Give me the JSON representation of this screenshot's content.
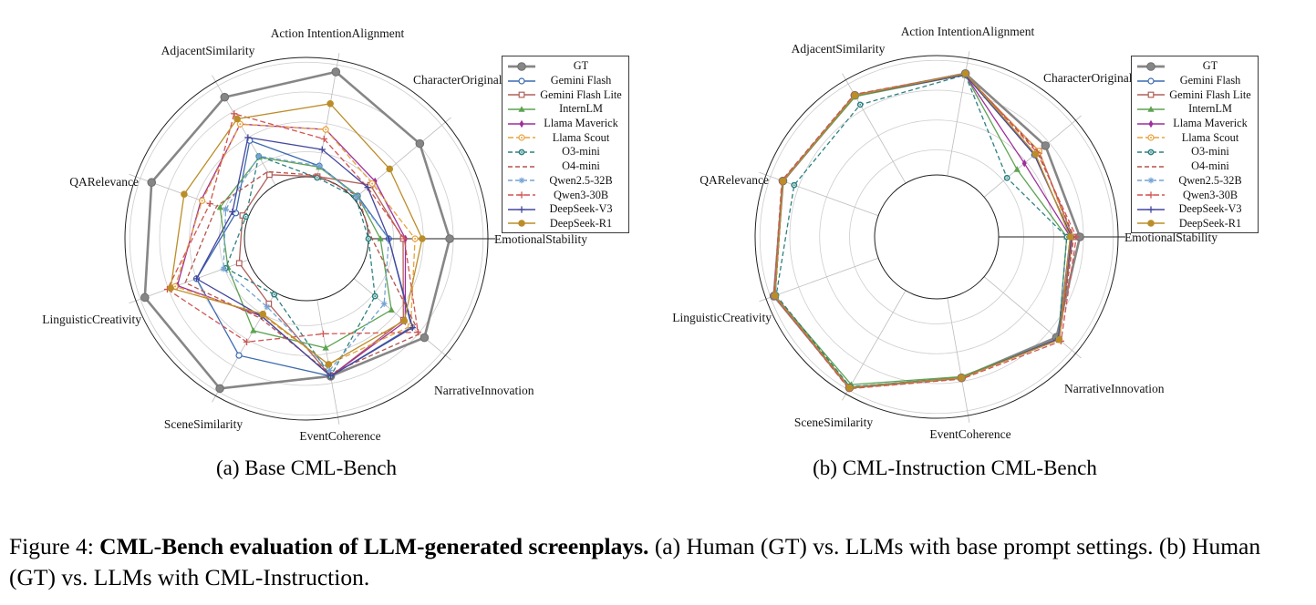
{
  "figure": {
    "subcaption_a": "(a) Base CML-Bench",
    "subcaption_b": "(b) CML-Instruction CML-Bench",
    "caption_prefix": "Figure 4: ",
    "caption_bold": "CML-Bench evaluation of LLM-generated screenplays.",
    "caption_rest": " (a) Human (GT) vs. LLMs with base prompt settings. (b) Human (GT) vs. LLMs with CML-Instruction."
  },
  "chart_data": [
    {
      "type": "radar",
      "title": "Base CML-Bench",
      "axes": [
        "Action IntentionAlignment",
        "CharacterOriginality",
        "EmotionalStability",
        "NarrativeInnovation",
        "EventCoherence",
        "SceneSimilarity",
        "LinguisticCreativity",
        "QARelevance",
        "AdjacentSimilarity"
      ],
      "radial_scale": "normalized 0-1 from inner hole to outer ring; no numeric radial tick labels shown",
      "grid_rings_at": [
        0.21,
        0.46,
        0.71,
        0.96
      ],
      "legend_position": "upper right, overlapping CharacterOriginality label",
      "series": [
        {
          "name": "GT",
          "color": "#868686",
          "dash": "none",
          "marker": "circle-big",
          "values": [
            0.9,
            0.72,
            0.68,
            0.77,
            0.65,
            0.93,
            0.92,
            0.86,
            0.85
          ]
        },
        {
          "name": "Gemini Flash",
          "color": "#3c6ab0",
          "dash": "none",
          "marker": "circle-open",
          "values": [
            0.1,
            0.04,
            0.17,
            0.63,
            0.65,
            0.61,
            0.46,
            0.11,
            0.43
          ]
        },
        {
          "name": "Gemini Flash Lite",
          "color": "#b0605a",
          "dash": "none",
          "marker": "square-open",
          "values": [
            0.01,
            0.18,
            0.29,
            0.54,
            0.65,
            0.11,
            0.08,
            0.05,
            0.1
          ]
        },
        {
          "name": "InternLM",
          "color": "#5ea352",
          "dash": "none",
          "marker": "triangle",
          "values": [
            0.09,
            0.04,
            0.1,
            0.41,
            0.41,
            0.37,
            0.18,
            0.25,
            0.27
          ]
        },
        {
          "name": "Llama Maverick",
          "color": "#9e2f9e",
          "dash": "none",
          "marker": "diamond",
          "values": [
            0.41,
            0.23,
            0.31,
            0.56,
            0.65,
            0.23,
            0.63,
            0.42,
            0.59
          ]
        },
        {
          "name": "Llama Scout",
          "color": "#e8a23d",
          "dash": "6,3",
          "marker": "circle-dot-open",
          "values": [
            0.41,
            0.2,
            0.39,
            0.62,
            0.55,
            0.22,
            0.65,
            0.41,
            0.59
          ]
        },
        {
          "name": "O3-mini",
          "color": "#2e8080",
          "dash": "5,3",
          "marker": "circle-dot",
          "values": [
            0.0,
            0.02,
            0.0,
            0.23,
            0.65,
            0.02,
            0.2,
            0.02,
            0.28
          ]
        },
        {
          "name": "O4-mini",
          "color": "#b5544a",
          "dash": "5,3",
          "marker": "none",
          "values": [
            0.02,
            0.04,
            0.03,
            0.72,
            0.63,
            0.25,
            0.56,
            0.28,
            0.13
          ]
        },
        {
          "name": "Qwen2.5-32B",
          "color": "#74a3d4",
          "dash": "5,3",
          "marker": "asterisk",
          "values": [
            0.1,
            0.03,
            0.17,
            0.33,
            0.6,
            0.14,
            0.22,
            0.2,
            0.28
          ]
        },
        {
          "name": "Qwen3-30B",
          "color": "#d05552",
          "dash": "6,3",
          "marker": "plus",
          "values": [
            0.33,
            0.15,
            0.3,
            0.7,
            0.29,
            0.48,
            0.72,
            0.34,
            0.69
          ]
        },
        {
          "name": "DeepSeek-V3",
          "color": "#44479e",
          "dash": "none",
          "marker": "plus",
          "values": [
            0.24,
            0.15,
            0.17,
            0.64,
            0.65,
            0.23,
            0.46,
            0.14,
            0.46
          ]
        },
        {
          "name": "DeepSeek-R1",
          "color": "#bb8d29",
          "dash": "none",
          "marker": "circle",
          "values": [
            0.63,
            0.39,
            0.45,
            0.55,
            0.55,
            0.21,
            0.69,
            0.57,
            0.64
          ]
        }
      ]
    },
    {
      "type": "radar",
      "title": "CML-Instruction CML-Bench",
      "axes": [
        "Action IntentionAlignment",
        "CharacterOriginality",
        "EmotionalStability",
        "NarrativeInnovation",
        "EventCoherence",
        "SceneSimilarity",
        "LinguisticCreativity",
        "QARelevance",
        "AdjacentSimilarity"
      ],
      "radial_scale": "normalized 0-1 from inner hole to outer ring; no numeric radial tick labels shown",
      "grid_rings_at": [
        0.21,
        0.46,
        0.71,
        0.96
      ],
      "legend_position": "upper right, overlapping CharacterOriginality label",
      "series": [
        {
          "name": "GT",
          "color": "#868686",
          "dash": "none",
          "marker": "circle-big",
          "values": [
            0.87,
            0.67,
            0.68,
            0.79,
            0.68,
            0.94,
            0.93,
            0.85,
            0.85
          ]
        },
        {
          "name": "Gemini Flash",
          "color": "#3c6ab0",
          "dash": "none",
          "marker": "circle-open",
          "values": [
            0.86,
            0.55,
            0.61,
            0.81,
            0.68,
            0.94,
            0.92,
            0.85,
            0.85
          ]
        },
        {
          "name": "Gemini Flash Lite",
          "color": "#b0605a",
          "dash": "none",
          "marker": "square-open",
          "values": [
            0.86,
            0.6,
            0.62,
            0.82,
            0.68,
            0.94,
            0.92,
            0.85,
            0.85
          ]
        },
        {
          "name": "InternLM",
          "color": "#5ea352",
          "dash": "none",
          "marker": "triangle",
          "values": [
            0.86,
            0.36,
            0.57,
            0.81,
            0.67,
            0.91,
            0.92,
            0.85,
            0.84
          ]
        },
        {
          "name": "Llama Maverick",
          "color": "#9e2f9e",
          "dash": "none",
          "marker": "diamond",
          "values": [
            0.86,
            0.44,
            0.6,
            0.81,
            0.68,
            0.94,
            0.92,
            0.85,
            0.85
          ]
        },
        {
          "name": "Llama Scout",
          "color": "#e8a23d",
          "dash": "6,3",
          "marker": "circle-dot-open",
          "values": [
            0.86,
            0.6,
            0.61,
            0.81,
            0.68,
            0.94,
            0.92,
            0.85,
            0.85
          ]
        },
        {
          "name": "O3-mini",
          "color": "#2e8080",
          "dash": "5,3",
          "marker": "circle-dot",
          "values": [
            0.86,
            0.25,
            0.57,
            0.81,
            0.68,
            0.93,
            0.91,
            0.75,
            0.76
          ]
        },
        {
          "name": "O4-mini",
          "color": "#b5544a",
          "dash": "5,3",
          "marker": "none",
          "values": [
            0.86,
            0.59,
            0.63,
            0.82,
            0.68,
            0.94,
            0.92,
            0.85,
            0.85
          ]
        },
        {
          "name": "Qwen2.5-32B",
          "color": "#74a3d4",
          "dash": "5,3",
          "marker": "asterisk",
          "values": [
            0.86,
            0.55,
            0.61,
            0.81,
            0.68,
            0.94,
            0.92,
            0.85,
            0.85
          ]
        },
        {
          "name": "Qwen3-30B",
          "color": "#d05552",
          "dash": "6,3",
          "marker": "plus",
          "values": [
            0.87,
            0.58,
            0.65,
            0.84,
            0.69,
            0.95,
            0.93,
            0.86,
            0.86
          ]
        },
        {
          "name": "DeepSeek-V3",
          "color": "#44479e",
          "dash": "none",
          "marker": "plus",
          "values": [
            0.86,
            0.55,
            0.61,
            0.81,
            0.68,
            0.94,
            0.92,
            0.85,
            0.85
          ]
        },
        {
          "name": "DeepSeek-R1",
          "color": "#bb8d29",
          "dash": "none",
          "marker": "circle",
          "values": [
            0.87,
            0.56,
            0.6,
            0.82,
            0.68,
            0.94,
            0.92,
            0.85,
            0.85
          ]
        }
      ]
    }
  ]
}
